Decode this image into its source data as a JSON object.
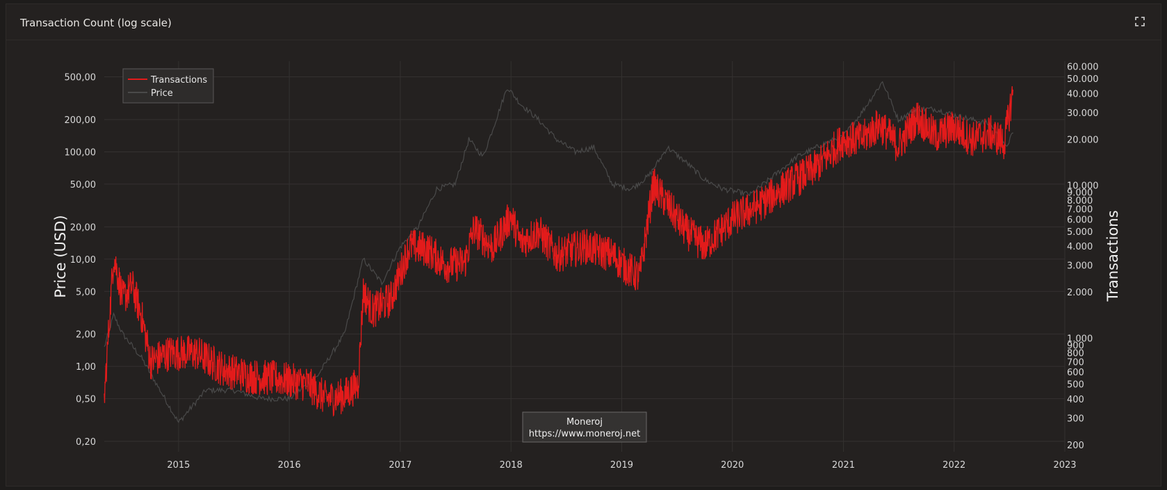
{
  "panel": {
    "title": "Transaction Count (log scale)",
    "expand_icon": "expand-icon"
  },
  "watermark": {
    "line1": "Moneroj",
    "line2": "https://www.moneroj.net"
  },
  "colors": {
    "transactions": "#e31b1b",
    "price": "#4a4a4a",
    "grid": "#343130",
    "background": "#242120"
  },
  "chart_data": {
    "type": "line",
    "title": "Transaction Count (log scale)",
    "x_range": [
      "2014-05-01",
      "2023-01-01"
    ],
    "x_ticks": [
      "2015",
      "2016",
      "2017",
      "2018",
      "2019",
      "2020",
      "2021",
      "2022",
      "2023"
    ],
    "left_axis": {
      "label": "Price (USD)",
      "scale": "log",
      "range": [
        0.16,
        700
      ],
      "ticks": [
        "0,20",
        "0,50",
        "1,00",
        "2,00",
        "5,00",
        "10,00",
        "20,00",
        "50,00",
        "100,00",
        "200,00",
        "500,00"
      ],
      "tick_values": [
        0.2,
        0.5,
        1,
        2,
        5,
        10,
        20,
        50,
        100,
        200,
        500
      ]
    },
    "right_axis": {
      "label": "Transactions",
      "scale": "log",
      "range": [
        180,
        65000
      ],
      "ticks": [
        "200",
        "300",
        "400",
        "500",
        "600",
        "700",
        "800",
        "900",
        "1.000",
        "2.000",
        "3.000",
        "4.000",
        "5.000",
        "6.000",
        "7.000",
        "8.000",
        "9.000",
        "10.000",
        "20.000",
        "30.000",
        "40.000",
        "50.000",
        "60.000"
      ],
      "tick_values": [
        200,
        300,
        400,
        500,
        600,
        700,
        800,
        900,
        1000,
        2000,
        3000,
        4000,
        5000,
        6000,
        7000,
        8000,
        9000,
        10000,
        20000,
        30000,
        40000,
        50000,
        60000
      ]
    },
    "legend": {
      "placement": "top-left"
    },
    "grid": true,
    "series": [
      {
        "name": "Transactions",
        "axis": "right",
        "x": [
          "2014-05-01",
          "2014-06-01",
          "2014-07-01",
          "2014-08-01",
          "2014-09-01",
          "2014-10-01",
          "2014-12-01",
          "2015-03-01",
          "2015-06-01",
          "2015-09-01",
          "2015-12-01",
          "2016-03-01",
          "2016-05-01",
          "2016-07-01",
          "2016-08-15",
          "2016-09-01",
          "2016-10-01",
          "2016-12-01",
          "2017-02-01",
          "2017-04-01",
          "2017-06-01",
          "2017-08-01",
          "2017-09-01",
          "2017-11-01",
          "2018-01-01",
          "2018-02-01",
          "2018-04-01",
          "2018-06-01",
          "2018-09-01",
          "2018-12-01",
          "2019-01-15",
          "2019-03-01",
          "2019-04-15",
          "2019-06-01",
          "2019-08-01",
          "2019-10-01",
          "2020-01-01",
          "2020-04-01",
          "2020-07-01",
          "2020-10-01",
          "2021-01-01",
          "2021-03-01",
          "2021-05-01",
          "2021-07-01",
          "2021-09-01",
          "2021-11-01",
          "2022-01-01",
          "2022-03-01",
          "2022-05-01",
          "2022-06-15",
          "2022-07-15"
        ],
        "values": [
          400,
          3500,
          1800,
          2200,
          1400,
          700,
          800,
          800,
          620,
          560,
          540,
          500,
          400,
          420,
          500,
          2000,
          1500,
          1800,
          4000,
          3800,
          3000,
          3100,
          5200,
          3900,
          6300,
          4200,
          5000,
          3500,
          4000,
          3500,
          2900,
          2500,
          10000,
          7500,
          5000,
          4000,
          6000,
          7500,
          10000,
          13000,
          20000,
          20000,
          25000,
          18000,
          28000,
          21000,
          24000,
          20000,
          22000,
          19000,
          42000
        ]
      },
      {
        "name": "Price",
        "axis": "left",
        "x": [
          "2014-05-01",
          "2014-06-01",
          "2014-07-01",
          "2014-09-01",
          "2014-11-01",
          "2015-01-01",
          "2015-04-01",
          "2015-07-01",
          "2015-10-01",
          "2016-01-01",
          "2016-04-01",
          "2016-07-01",
          "2016-09-01",
          "2016-11-01",
          "2017-01-01",
          "2017-03-01",
          "2017-05-01",
          "2017-07-01",
          "2017-08-15",
          "2017-10-01",
          "2017-12-20",
          "2018-02-01",
          "2018-04-01",
          "2018-06-01",
          "2018-08-01",
          "2018-10-01",
          "2018-12-01",
          "2019-02-01",
          "2019-04-01",
          "2019-06-01",
          "2019-08-01",
          "2019-10-01",
          "2019-12-01",
          "2020-03-01",
          "2020-06-01",
          "2020-08-01",
          "2020-11-01",
          "2021-01-01",
          "2021-03-01",
          "2021-05-10",
          "2021-07-01",
          "2021-09-01",
          "2021-11-01",
          "2022-01-01",
          "2022-03-01",
          "2022-05-01",
          "2022-06-20",
          "2022-07-15"
        ],
        "values": [
          1.5,
          3.0,
          2.0,
          1.2,
          0.6,
          0.3,
          0.6,
          0.6,
          0.5,
          0.5,
          0.8,
          2.0,
          10,
          6.0,
          13,
          20,
          45,
          50,
          130,
          90,
          400,
          280,
          200,
          130,
          100,
          110,
          50,
          45,
          60,
          110,
          80,
          55,
          45,
          40,
          65,
          90,
          120,
          140,
          230,
          450,
          200,
          250,
          250,
          220,
          200,
          180,
          110,
          150
        ]
      }
    ]
  }
}
